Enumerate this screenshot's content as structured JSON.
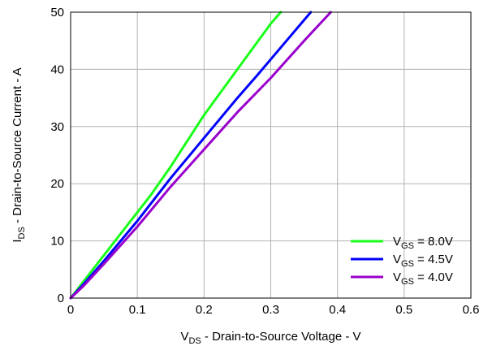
{
  "chart_data": {
    "type": "line",
    "title": "",
    "xlabel": {
      "main": "V",
      "sub": "DS",
      "rest": " - Drain-to-Source Voltage - V"
    },
    "ylabel": {
      "main": "I",
      "sub": "DS",
      "rest": " - Drain-to-Source Current - A"
    },
    "xlim": [
      0,
      0.6
    ],
    "ylim": [
      0,
      50
    ],
    "xticks": [
      0,
      0.1,
      0.2,
      0.3,
      0.4,
      0.5,
      0.6
    ],
    "xtick_labels": [
      "0",
      "0.1",
      "0.2",
      "0.3",
      "0.4",
      "0.5",
      "0.6"
    ],
    "yticks": [
      0,
      10,
      20,
      30,
      40,
      50
    ],
    "ytick_labels": [
      "0",
      "10",
      "20",
      "30",
      "40",
      "50"
    ],
    "grid": true,
    "legend_position": "bottom-right",
    "series": [
      {
        "name": "V",
        "name_sub": "GS",
        "name_rest": " = 8.0V",
        "color": "#1aff1a",
        "x": [
          0,
          0.02,
          0.05,
          0.08,
          0.12,
          0.15,
          0.2,
          0.25,
          0.3,
          0.315
        ],
        "y": [
          0,
          3,
          7.5,
          12,
          18,
          23,
          32,
          40,
          48,
          50
        ]
      },
      {
        "name": "V",
        "name_sub": "GS",
        "name_rest": " = 4.5V",
        "color": "#0000ff",
        "x": [
          0,
          0.02,
          0.05,
          0.1,
          0.15,
          0.2,
          0.25,
          0.28,
          0.32,
          0.36
        ],
        "y": [
          0,
          2.5,
          6.5,
          13.5,
          21,
          28,
          35,
          39,
          44.5,
          50
        ]
      },
      {
        "name": "V",
        "name_sub": "GS",
        "name_rest": " = 4.0V",
        "color": "#9900cc",
        "x": [
          0,
          0.02,
          0.05,
          0.1,
          0.15,
          0.2,
          0.25,
          0.3,
          0.35,
          0.39
        ],
        "y": [
          0,
          2.2,
          6,
          12.5,
          19.5,
          26,
          32.5,
          38.5,
          45,
          50
        ]
      }
    ]
  }
}
